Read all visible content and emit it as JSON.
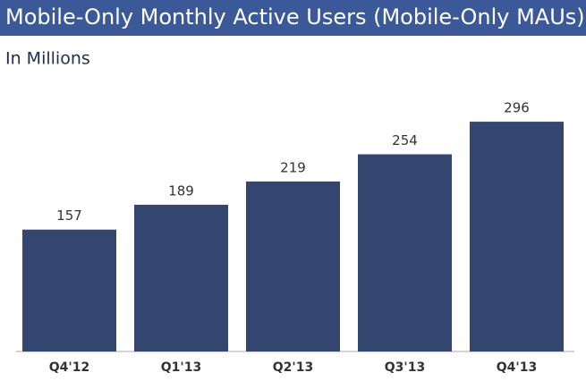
{
  "chart_data": {
    "type": "bar",
    "title": "Mobile-Only Monthly Active Users (Mobile-Only MAUs)",
    "subtitle": "In Millions",
    "categories": [
      "Q4'12",
      "Q1'13",
      "Q2'13",
      "Q3'13",
      "Q4'13"
    ],
    "values": [
      157,
      189,
      219,
      254,
      296
    ],
    "color": "#344570"
  }
}
